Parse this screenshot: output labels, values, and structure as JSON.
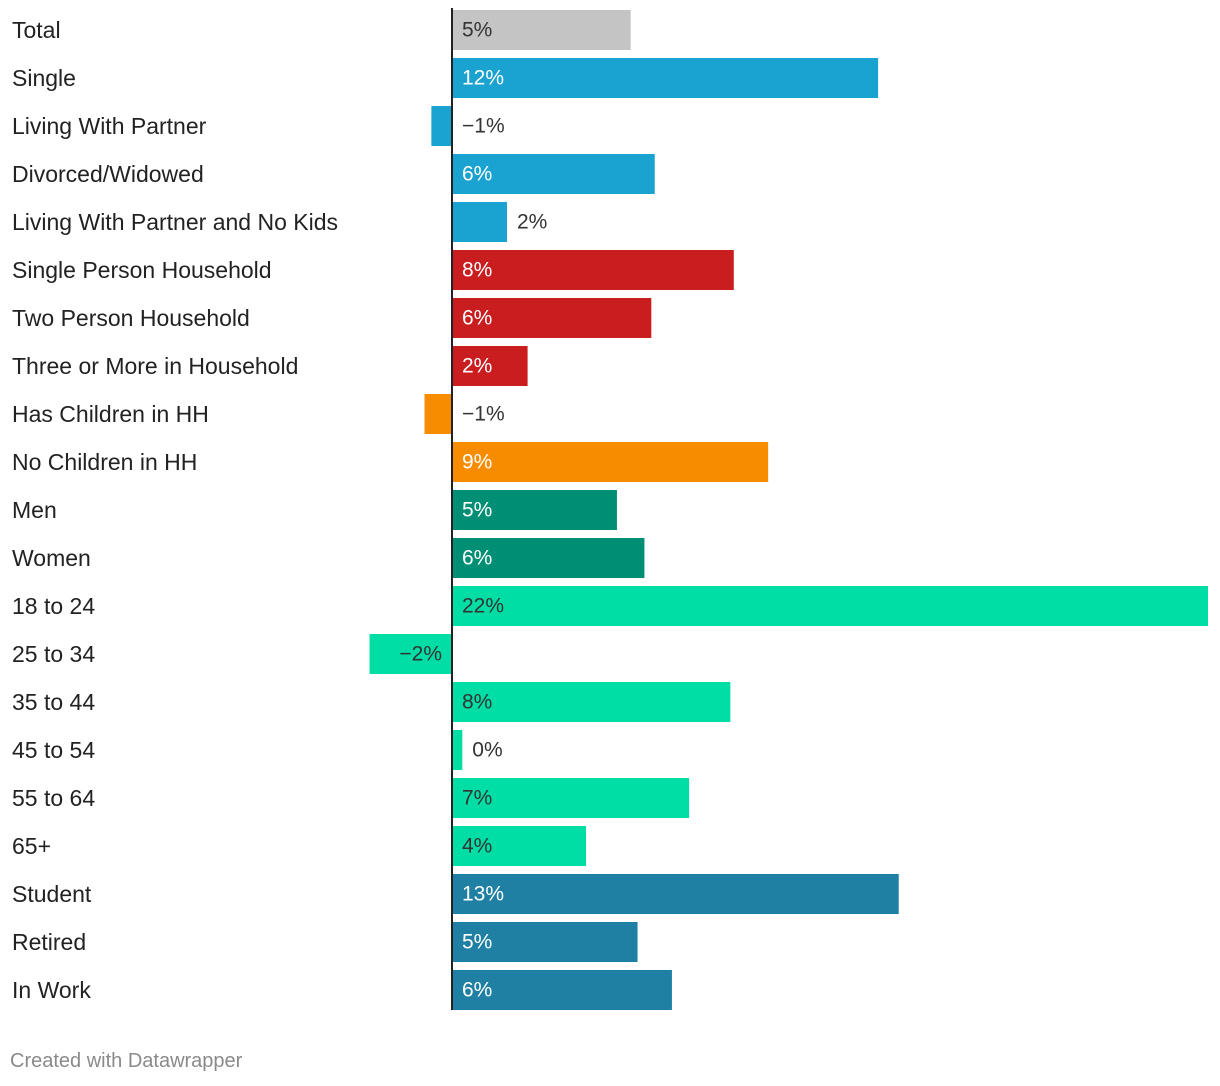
{
  "footer": "Created with Datawrapper",
  "colors": {
    "total": "#c4c4c4",
    "relationship": "#1aa2d0",
    "household": "#c91d1f",
    "children": "#f78c00",
    "gender": "#008f75",
    "age": "#00dea6",
    "work": "#1f80a3",
    "label_dark": "#333333",
    "label_light": "#ffffff",
    "axis": "#222222"
  },
  "chart_data": {
    "type": "bar",
    "orientation": "horizontal",
    "unit": "%",
    "xlim": [
      -2.5,
      22
    ],
    "categories": [
      "Total",
      "Single",
      "Living With Partner",
      "Divorced/Widowed",
      "Living With Partner and No Kids",
      "Single Person Household",
      "Two Person Household",
      "Three or More in Household",
      "Has Children in HH",
      "No Children in HH",
      "Men",
      "Women",
      "18 to 24",
      "25 to 34",
      "35 to 44",
      "45 to 54",
      "55 to 64",
      "65+",
      "Student",
      "Retired",
      "In Work"
    ],
    "values": [
      5.2,
      12.4,
      -0.6,
      5.9,
      1.6,
      8.2,
      5.8,
      2.2,
      -0.8,
      9.2,
      4.8,
      5.6,
      22.0,
      -2.4,
      8.1,
      0.3,
      6.9,
      3.9,
      13.0,
      5.4,
      6.4
    ],
    "value_labels": [
      "5%",
      "12%",
      "−1%",
      "6%",
      "2%",
      "8%",
      "6%",
      "2%",
      "−1%",
      "9%",
      "5%",
      "6%",
      "22%",
      "−2%",
      "8%",
      "0%",
      "7%",
      "4%",
      "13%",
      "5%",
      "6%"
    ],
    "groups": [
      "total",
      "relationship",
      "relationship",
      "relationship",
      "relationship",
      "household",
      "household",
      "household",
      "children",
      "children",
      "gender",
      "gender",
      "age",
      "age",
      "age",
      "age",
      "age",
      "age",
      "work",
      "work",
      "work"
    ]
  }
}
